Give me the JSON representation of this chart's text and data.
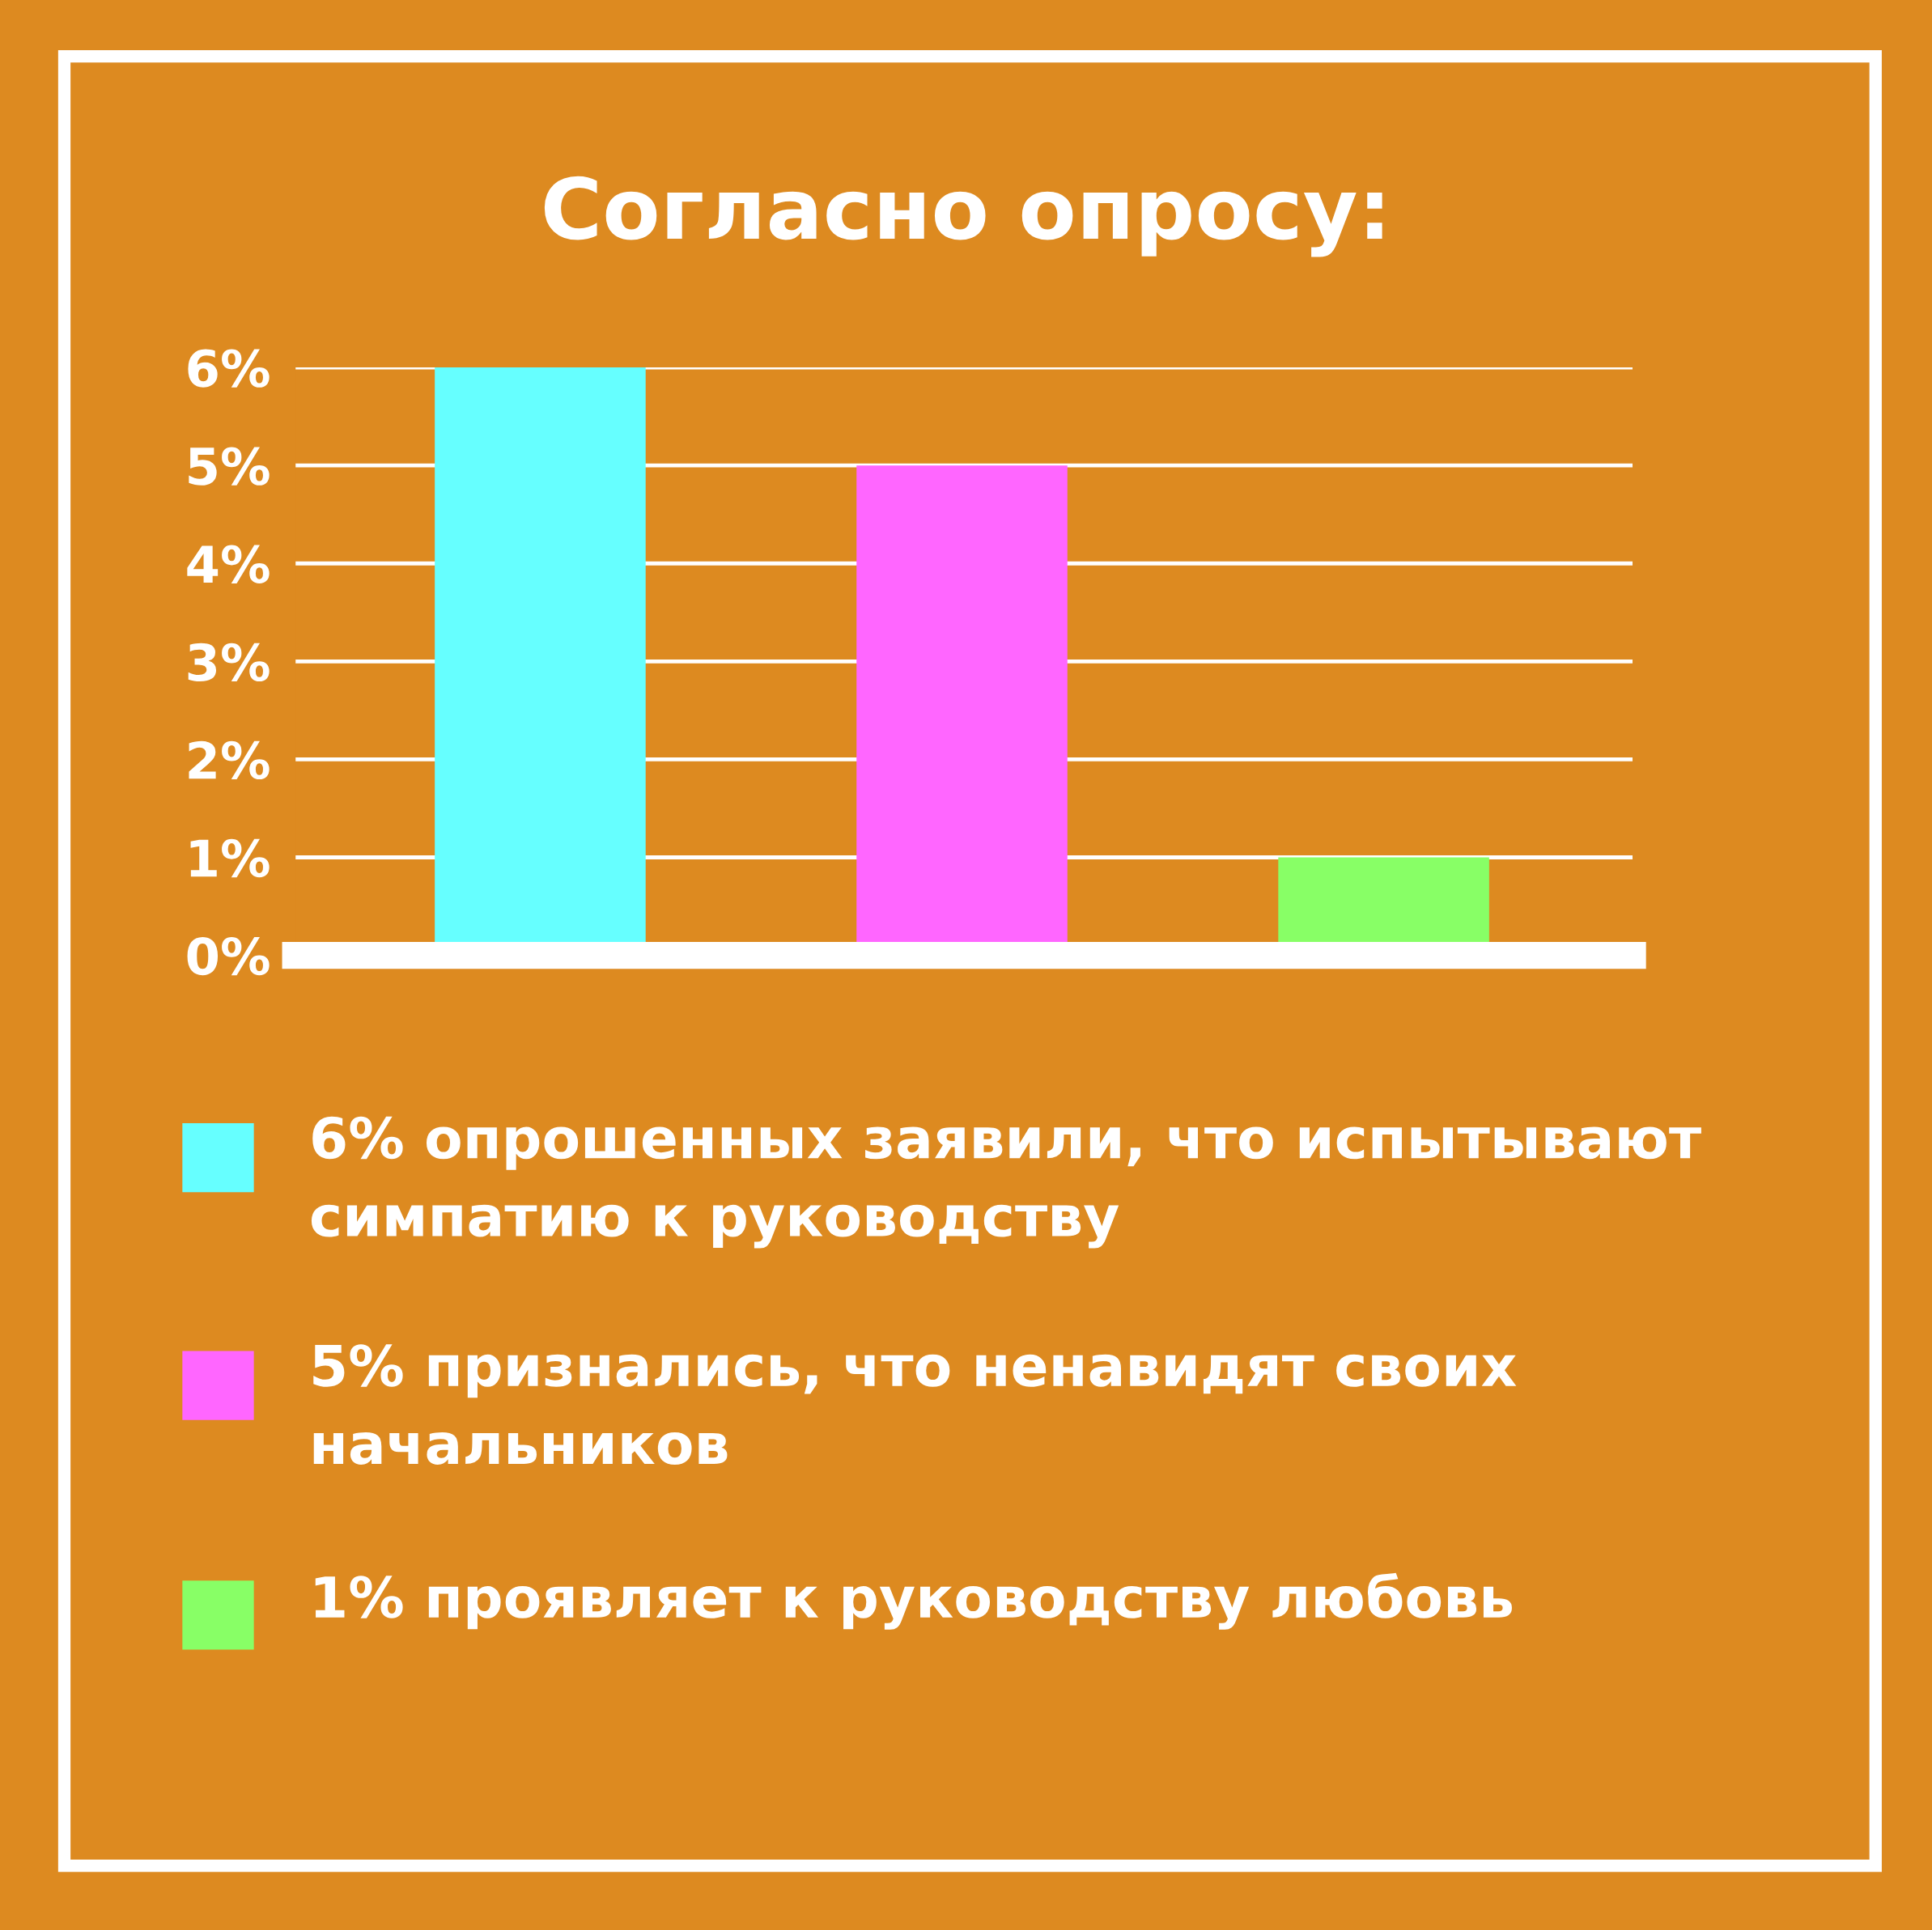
{
  "chart_data": {
    "type": "bar",
    "title": "Согласно опросу:",
    "categories": [
      null,
      null,
      null
    ],
    "series": [
      {
        "name": "6% опрошенных заявили, что испытывают симпатию к руководству",
        "color": "#66ffff",
        "values": [
          6,
          null,
          null
        ]
      },
      {
        "name": "5% признались, что ненавидят своих начальников",
        "color": "#ff66ff",
        "values": [
          null,
          5,
          null
        ]
      },
      {
        "name": "1% проявляет к руководству любовь",
        "color": "#88ff66",
        "values": [
          null,
          null,
          1
        ]
      }
    ],
    "ylim": [
      0,
      6
    ],
    "yticks": [
      {
        "value": 0,
        "label": "0%"
      },
      {
        "value": 1,
        "label": "1%"
      },
      {
        "value": 2,
        "label": "2%"
      },
      {
        "value": 3,
        "label": "3%"
      },
      {
        "value": 4,
        "label": "4%"
      },
      {
        "value": 5,
        "label": "5%"
      },
      {
        "value": 6,
        "label": "6%"
      }
    ],
    "grid": "y",
    "legend": "bottom"
  }
}
